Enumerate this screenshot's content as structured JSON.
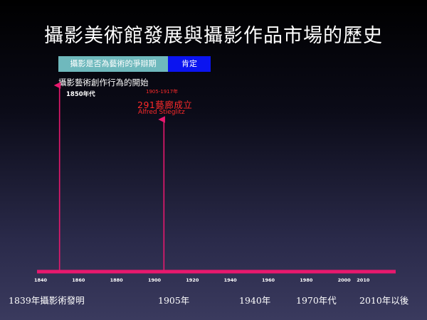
{
  "slide": {
    "title": "攝影美術館發展與攝影作品市場的歷史"
  },
  "bars": {
    "debate_label": "攝影是否為藝術的爭辯期",
    "affirm_label": "肯定"
  },
  "annotations": {
    "creative_start": "攝影藝術創作行為的開始",
    "year_1850": "1850年代",
    "gallery_range": "1905-1917年",
    "gallery_291": "291藝廊成立",
    "stieglitz": "Alfred Stieglitz"
  },
  "timeline": {
    "axis_color": "#e8186e",
    "ticks": [
      "1840",
      "1860",
      "1880",
      "1900",
      "1920",
      "1940",
      "1960",
      "1980",
      "2000",
      "2010"
    ],
    "markers": [
      1850,
      1905
    ]
  },
  "periods": [
    "1839年攝影術發明",
    "1905年",
    "1940年",
    "1970年代",
    "2010年以後"
  ]
}
